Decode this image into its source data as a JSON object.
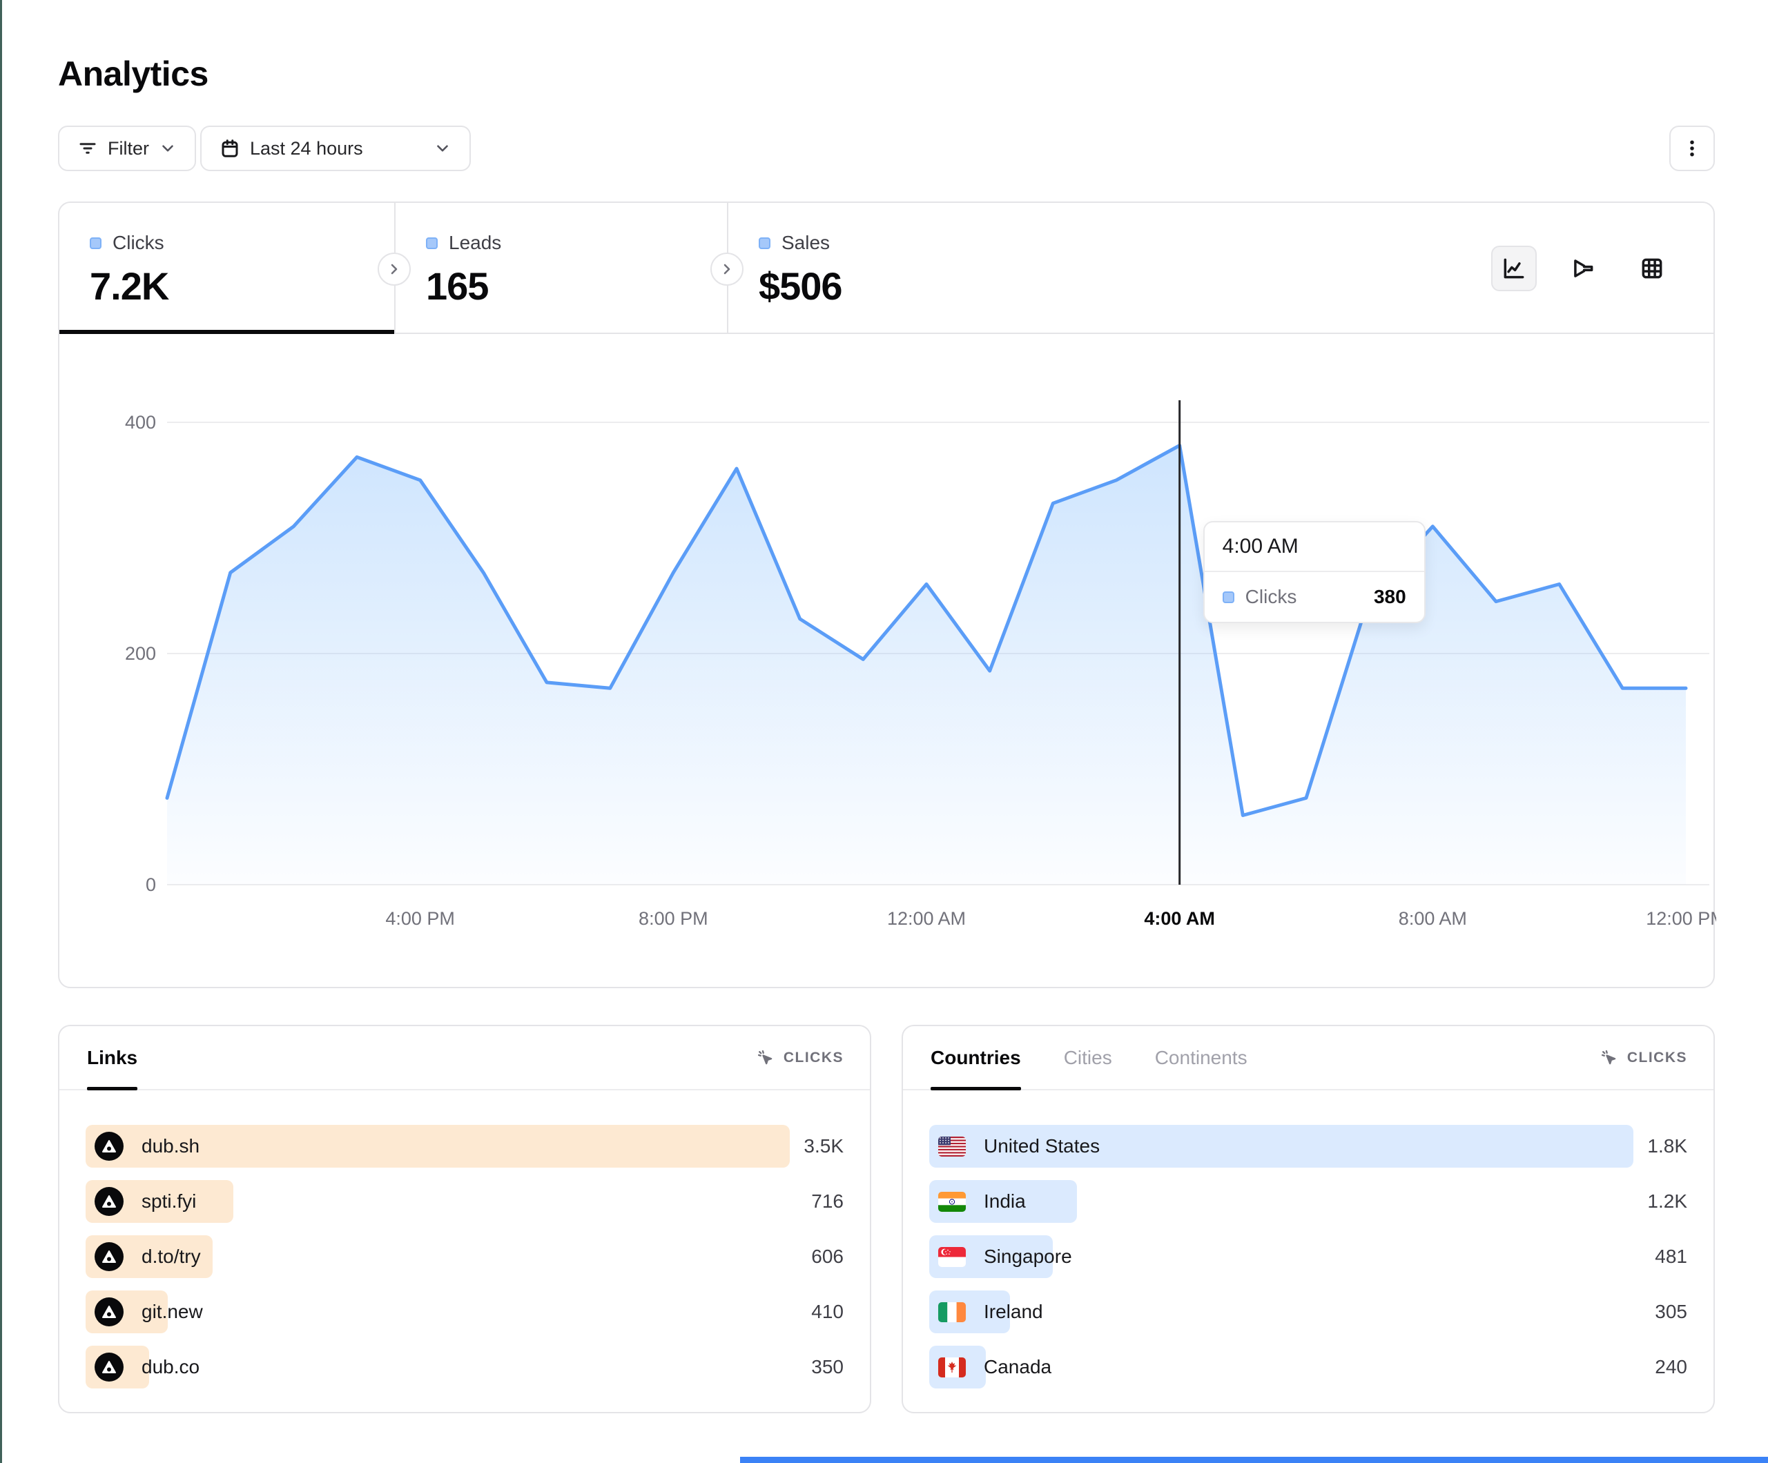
{
  "page": {
    "title": "Analytics"
  },
  "toolbar": {
    "filter_label": "Filter",
    "date_range_label": "Last 24 hours"
  },
  "stats": {
    "legend_color": "#93c5fd",
    "tabs": [
      {
        "label": "Clicks",
        "value": "7.2K",
        "active": true
      },
      {
        "label": "Leads",
        "value": "165",
        "active": false
      },
      {
        "label": "Sales",
        "value": "$506",
        "active": false
      }
    ]
  },
  "chart_data": {
    "type": "area",
    "series_name": "Clicks",
    "x": [
      "12:00 PM",
      "1:00 PM",
      "2:00 PM",
      "3:00 PM",
      "4:00 PM",
      "5:00 PM",
      "6:00 PM",
      "7:00 PM",
      "8:00 PM",
      "9:00 PM",
      "10:00 PM",
      "11:00 PM",
      "12:00 AM",
      "1:00 AM",
      "2:00 AM",
      "3:00 AM",
      "4:00 AM",
      "5:00 AM",
      "6:00 AM",
      "7:00 AM",
      "8:00 AM",
      "9:00 AM",
      "10:00 AM",
      "11:00 AM",
      "12:00 PM"
    ],
    "values": [
      75,
      270,
      310,
      370,
      350,
      270,
      175,
      170,
      270,
      360,
      230,
      195,
      260,
      185,
      330,
      350,
      380,
      60,
      75,
      250,
      310,
      245,
      260,
      170,
      170
    ],
    "x_ticks": [
      {
        "index": 4,
        "label": "4:00 PM",
        "emphasis": false
      },
      {
        "index": 8,
        "label": "8:00 PM",
        "emphasis": false
      },
      {
        "index": 12,
        "label": "12:00 AM",
        "emphasis": false
      },
      {
        "index": 16,
        "label": "4:00 AM",
        "emphasis": true
      },
      {
        "index": 20,
        "label": "8:00 AM",
        "emphasis": false
      },
      {
        "index": 24,
        "label": "12:00 PM",
        "emphasis": false
      }
    ],
    "y_ticks": [
      0,
      200,
      400
    ],
    "ylim": [
      0,
      440
    ],
    "grid": true,
    "line_color": "#5b9df7",
    "fill_color": "#93c5fd",
    "highlight": {
      "index": 16,
      "x_label": "4:00 AM",
      "value": 380
    }
  },
  "tooltip": {
    "title": "4:00 AM",
    "series": "Clicks",
    "value": "380"
  },
  "links_card": {
    "tab_label": "Links",
    "metric_label": "CLICKS",
    "bar_color": "#fde9d2",
    "rows": [
      {
        "label": "dub.sh",
        "value": "3.5K",
        "bar_pct": 100
      },
      {
        "label": "spti.fyi",
        "value": "716",
        "bar_pct": 21
      },
      {
        "label": "d.to/try",
        "value": "606",
        "bar_pct": 18
      },
      {
        "label": "git.new",
        "value": "410",
        "bar_pct": 11.7
      },
      {
        "label": "dub.co",
        "value": "350",
        "bar_pct": 9
      }
    ]
  },
  "countries_card": {
    "tabs": [
      "Countries",
      "Cities",
      "Continents"
    ],
    "active_tab": "Countries",
    "metric_label": "CLICKS",
    "bar_color": "#dbeafe",
    "rows": [
      {
        "label": "United States",
        "value": "1.8K",
        "bar_pct": 100,
        "flag": "us"
      },
      {
        "label": "India",
        "value": "1.2K",
        "bar_pct": 21,
        "flag": "in"
      },
      {
        "label": "Singapore",
        "value": "481",
        "bar_pct": 17.5,
        "flag": "sg"
      },
      {
        "label": "Ireland",
        "value": "305",
        "bar_pct": 11.5,
        "flag": "ie"
      },
      {
        "label": "Canada",
        "value": "240",
        "bar_pct": 8,
        "flag": "ca"
      }
    ]
  }
}
